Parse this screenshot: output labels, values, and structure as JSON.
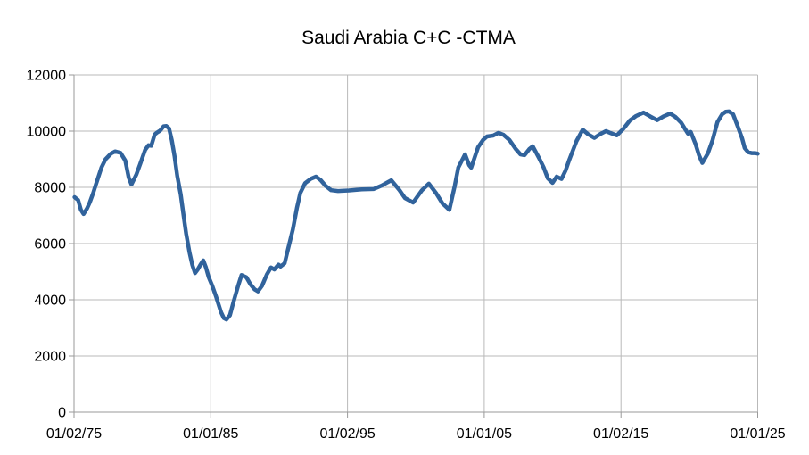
{
  "chart_data": {
    "type": "line",
    "title": "Saudi Arabia C+C -CTMA",
    "xlabel": "",
    "ylabel": "",
    "legend": "none",
    "grid": true,
    "x_range": [
      1975.0,
      2025.0
    ],
    "y_range": [
      0,
      12000
    ],
    "x_ticks": [
      {
        "label": "01/02/75",
        "year": 1975.0
      },
      {
        "label": "01/01/85",
        "year": 1985.0
      },
      {
        "label": "01/02/95",
        "year": 1995.0
      },
      {
        "label": "01/01/05",
        "year": 2005.0
      },
      {
        "label": "01/02/15",
        "year": 2015.0
      },
      {
        "label": "01/01/25",
        "year": 2025.0
      }
    ],
    "y_ticks": [
      {
        "label": "0",
        "value": 0
      },
      {
        "label": "2000",
        "value": 2000
      },
      {
        "label": "4000",
        "value": 4000
      },
      {
        "label": "6000",
        "value": 6000
      },
      {
        "label": "8000",
        "value": 8000
      },
      {
        "label": "10000",
        "value": 10000
      },
      {
        "label": "12000",
        "value": 12000
      }
    ],
    "style": {
      "line_color": "#31639c",
      "line_width": 4.5,
      "grid_color": "#b9b9b9",
      "axis_color": "#9a9a9a",
      "text_color": "#000000",
      "background": "#ffffff"
    },
    "series": [
      {
        "name": "Saudi Arabia C+C CTMA",
        "points": [
          [
            1975.04,
            7650
          ],
          [
            1975.3,
            7550
          ],
          [
            1975.5,
            7200
          ],
          [
            1975.7,
            7050
          ],
          [
            1975.95,
            7250
          ],
          [
            1976.15,
            7460
          ],
          [
            1976.4,
            7800
          ],
          [
            1976.6,
            8100
          ],
          [
            1977.0,
            8700
          ],
          [
            1977.3,
            9000
          ],
          [
            1977.7,
            9200
          ],
          [
            1978.0,
            9280
          ],
          [
            1978.4,
            9230
          ],
          [
            1978.75,
            8950
          ],
          [
            1979.0,
            8350
          ],
          [
            1979.2,
            8100
          ],
          [
            1979.55,
            8450
          ],
          [
            1979.85,
            8850
          ],
          [
            1980.2,
            9330
          ],
          [
            1980.45,
            9500
          ],
          [
            1980.65,
            9480
          ],
          [
            1980.9,
            9880
          ],
          [
            1981.1,
            9960
          ],
          [
            1981.3,
            10020
          ],
          [
            1981.55,
            10170
          ],
          [
            1981.75,
            10180
          ],
          [
            1981.95,
            10100
          ],
          [
            1982.15,
            9680
          ],
          [
            1982.35,
            9110
          ],
          [
            1982.55,
            8410
          ],
          [
            1982.8,
            7750
          ],
          [
            1983.0,
            7050
          ],
          [
            1983.2,
            6350
          ],
          [
            1983.45,
            5680
          ],
          [
            1983.65,
            5240
          ],
          [
            1983.85,
            4950
          ],
          [
            1984.05,
            5080
          ],
          [
            1984.25,
            5250
          ],
          [
            1984.45,
            5400
          ],
          [
            1984.65,
            5150
          ],
          [
            1984.85,
            4800
          ],
          [
            1985.1,
            4510
          ],
          [
            1985.4,
            4100
          ],
          [
            1985.75,
            3560
          ],
          [
            1985.95,
            3350
          ],
          [
            1986.15,
            3300
          ],
          [
            1986.4,
            3450
          ],
          [
            1986.65,
            3900
          ],
          [
            1987.0,
            4500
          ],
          [
            1987.25,
            4880
          ],
          [
            1987.6,
            4800
          ],
          [
            1987.9,
            4550
          ],
          [
            1988.2,
            4370
          ],
          [
            1988.45,
            4300
          ],
          [
            1988.75,
            4500
          ],
          [
            1989.1,
            4900
          ],
          [
            1989.4,
            5150
          ],
          [
            1989.65,
            5080
          ],
          [
            1989.95,
            5250
          ],
          [
            1990.1,
            5180
          ],
          [
            1990.4,
            5300
          ],
          [
            1990.65,
            5800
          ],
          [
            1991.0,
            6500
          ],
          [
            1991.3,
            7270
          ],
          [
            1991.55,
            7800
          ],
          [
            1991.9,
            8150
          ],
          [
            1992.3,
            8300
          ],
          [
            1992.7,
            8380
          ],
          [
            1993.05,
            8250
          ],
          [
            1993.4,
            8050
          ],
          [
            1993.8,
            7900
          ],
          [
            1994.3,
            7870
          ],
          [
            1995.1,
            7890
          ],
          [
            1996.05,
            7930
          ],
          [
            1996.9,
            7940
          ],
          [
            1997.5,
            8060
          ],
          [
            1997.9,
            8170
          ],
          [
            1998.2,
            8250
          ],
          [
            1998.8,
            7900
          ],
          [
            1999.2,
            7620
          ],
          [
            1999.8,
            7460
          ],
          [
            2000.45,
            7900
          ],
          [
            2000.95,
            8130
          ],
          [
            2001.5,
            7780
          ],
          [
            2001.95,
            7430
          ],
          [
            2002.45,
            7200
          ],
          [
            2002.85,
            8060
          ],
          [
            2003.1,
            8700
          ],
          [
            2003.6,
            9175
          ],
          [
            2003.9,
            8790
          ],
          [
            2004.05,
            8700
          ],
          [
            2004.55,
            9430
          ],
          [
            2004.9,
            9680
          ],
          [
            2005.2,
            9810
          ],
          [
            2005.65,
            9840
          ],
          [
            2006.05,
            9940
          ],
          [
            2006.4,
            9870
          ],
          [
            2006.85,
            9680
          ],
          [
            2007.3,
            9365
          ],
          [
            2007.65,
            9175
          ],
          [
            2007.95,
            9145
          ],
          [
            2008.3,
            9365
          ],
          [
            2008.55,
            9460
          ],
          [
            2009.0,
            9050
          ],
          [
            2009.35,
            8700
          ],
          [
            2009.65,
            8320
          ],
          [
            2010.0,
            8160
          ],
          [
            2010.3,
            8380
          ],
          [
            2010.65,
            8300
          ],
          [
            2010.95,
            8600
          ],
          [
            2011.2,
            8950
          ],
          [
            2011.75,
            9650
          ],
          [
            2012.2,
            10050
          ],
          [
            2012.6,
            9890
          ],
          [
            2013.05,
            9760
          ],
          [
            2013.5,
            9900
          ],
          [
            2013.9,
            10000
          ],
          [
            2014.3,
            9920
          ],
          [
            2014.7,
            9850
          ],
          [
            2015.2,
            10100
          ],
          [
            2015.65,
            10380
          ],
          [
            2016.1,
            10540
          ],
          [
            2016.65,
            10660
          ],
          [
            2017.15,
            10520
          ],
          [
            2017.65,
            10390
          ],
          [
            2018.1,
            10520
          ],
          [
            2018.6,
            10630
          ],
          [
            2019.0,
            10500
          ],
          [
            2019.4,
            10300
          ],
          [
            2019.7,
            10060
          ],
          [
            2019.9,
            9910
          ],
          [
            2020.1,
            9970
          ],
          [
            2020.45,
            9550
          ],
          [
            2020.7,
            9150
          ],
          [
            2020.95,
            8870
          ],
          [
            2021.35,
            9200
          ],
          [
            2021.7,
            9680
          ],
          [
            2022.05,
            10320
          ],
          [
            2022.4,
            10600
          ],
          [
            2022.65,
            10690
          ],
          [
            2022.9,
            10700
          ],
          [
            2023.2,
            10600
          ],
          [
            2023.5,
            10220
          ],
          [
            2023.85,
            9750
          ],
          [
            2024.05,
            9400
          ],
          [
            2024.3,
            9250
          ],
          [
            2024.55,
            9220
          ],
          [
            2024.8,
            9220
          ],
          [
            2025.0,
            9200
          ]
        ]
      }
    ]
  }
}
